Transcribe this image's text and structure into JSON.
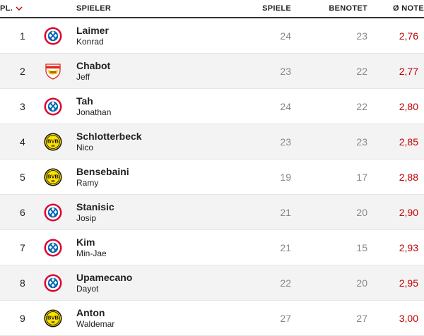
{
  "header": {
    "rank": "PL.",
    "player": "SPIELER",
    "games": "SPIELE",
    "rated": "BENOTET",
    "grade": "Ø NOTE"
  },
  "rows": [
    {
      "rank": "1",
      "last": "Laimer",
      "first": "Konrad",
      "club": "fc-bayern-crest",
      "games": "24",
      "rated": "23",
      "grade": "2,76"
    },
    {
      "rank": "2",
      "last": "Chabot",
      "first": "Jeff",
      "club": "vfb-stuttgart-crest",
      "games": "23",
      "rated": "22",
      "grade": "2,77"
    },
    {
      "rank": "3",
      "last": "Tah",
      "first": "Jonathan",
      "club": "fc-bayern-crest",
      "games": "24",
      "rated": "22",
      "grade": "2,80"
    },
    {
      "rank": "4",
      "last": "Schlotterbeck",
      "first": "Nico",
      "club": "bvb-crest",
      "games": "23",
      "rated": "23",
      "grade": "2,85"
    },
    {
      "rank": "5",
      "last": "Bensebaini",
      "first": "Ramy",
      "club": "bvb-crest",
      "games": "19",
      "rated": "17",
      "grade": "2,88"
    },
    {
      "rank": "6",
      "last": "Stanisic",
      "first": "Josip",
      "club": "fc-bayern-crest",
      "games": "21",
      "rated": "20",
      "grade": "2,90"
    },
    {
      "rank": "7",
      "last": "Kim",
      "first": "Min-Jae",
      "club": "fc-bayern-crest",
      "games": "21",
      "rated": "15",
      "grade": "2,93"
    },
    {
      "rank": "8",
      "last": "Upamecano",
      "first": "Dayot",
      "club": "fc-bayern-crest",
      "games": "22",
      "rated": "20",
      "grade": "2,95"
    },
    {
      "rank": "9",
      "last": "Anton",
      "first": "Waldemar",
      "club": "bvb-crest",
      "games": "27",
      "rated": "27",
      "grade": "3,00"
    }
  ],
  "colors": {
    "accent": "#c00000",
    "bayern_red": "#dc052d",
    "bayern_blue": "#0066b2",
    "bvb_yellow": "#fde100",
    "stuttgart_red": "#e32219"
  },
  "crest_text": {
    "bvb": "BVB",
    "bvb_year": "09"
  }
}
